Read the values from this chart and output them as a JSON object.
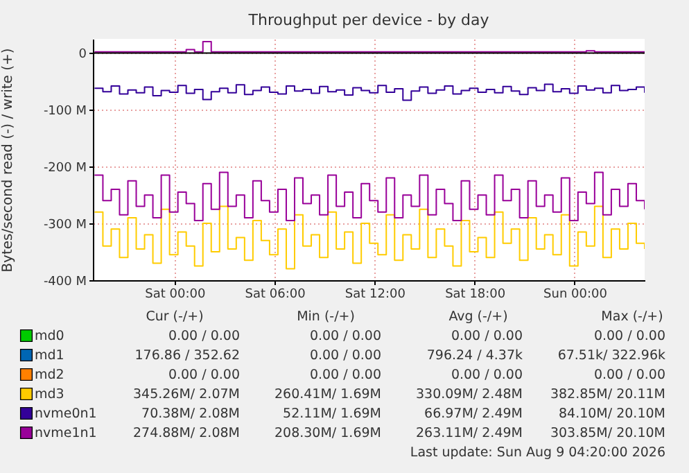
{
  "chart_data": {
    "type": "step",
    "title": "Throughput per device - by day",
    "ylabel": "Bytes/second read (-) / write (+)",
    "xlim": [
      "2026-08-07T19:06",
      "2026-08-09T04:12"
    ],
    "xticks": [
      {
        "value": "2026-08-08T00:00",
        "label": "Sat 00:00"
      },
      {
        "value": "2026-08-08T06:00",
        "label": "Sat 06:00"
      },
      {
        "value": "2026-08-08T12:00",
        "label": "Sat 12:00"
      },
      {
        "value": "2026-08-08T18:00",
        "label": "Sat 18:00"
      },
      {
        "value": "2026-08-09T00:00",
        "label": "Sun 00:00"
      }
    ],
    "ylim": [
      -400,
      25
    ],
    "yticks": [
      0,
      {
        "value": -100,
        "label": "-100 M"
      },
      {
        "value": -200,
        "label": "-200 M"
      },
      {
        "value": -300,
        "label": "-300 M"
      },
      {
        "value": -400,
        "label": "-400 M"
      }
    ],
    "grid": true,
    "legend": "bottom",
    "ref_lines": [
      {
        "axis": "y",
        "value": 0,
        "color": "#000000"
      }
    ],
    "x": [
      "2026-08-07T19:12",
      "2026-08-07T19:42",
      "2026-08-07T20:12",
      "2026-08-07T20:42",
      "2026-08-07T21:12",
      "2026-08-07T21:42",
      "2026-08-07T22:12",
      "2026-08-07T22:42",
      "2026-08-07T23:12",
      "2026-08-07T23:42",
      "2026-08-08T00:12",
      "2026-08-08T00:42",
      "2026-08-08T01:12",
      "2026-08-08T01:42",
      "2026-08-08T02:12",
      "2026-08-08T02:42",
      "2026-08-08T03:12",
      "2026-08-08T03:42",
      "2026-08-08T04:12",
      "2026-08-08T04:42",
      "2026-08-08T05:12",
      "2026-08-08T05:42",
      "2026-08-08T06:12",
      "2026-08-08T06:42",
      "2026-08-08T07:12",
      "2026-08-08T07:42",
      "2026-08-08T08:12",
      "2026-08-08T08:42",
      "2026-08-08T09:12",
      "2026-08-08T09:42",
      "2026-08-08T10:12",
      "2026-08-08T10:42",
      "2026-08-08T11:12",
      "2026-08-08T11:42",
      "2026-08-08T12:12",
      "2026-08-08T12:42",
      "2026-08-08T13:12",
      "2026-08-08T13:42",
      "2026-08-08T14:12",
      "2026-08-08T14:42",
      "2026-08-08T15:12",
      "2026-08-08T15:42",
      "2026-08-08T16:12",
      "2026-08-08T16:42",
      "2026-08-08T17:12",
      "2026-08-08T17:42",
      "2026-08-08T18:12",
      "2026-08-08T18:42",
      "2026-08-08T19:12",
      "2026-08-08T19:42",
      "2026-08-08T20:12",
      "2026-08-08T20:42",
      "2026-08-08T21:12",
      "2026-08-08T21:42",
      "2026-08-08T22:12",
      "2026-08-08T22:42",
      "2026-08-08T23:12",
      "2026-08-08T23:42",
      "2026-08-09T00:12",
      "2026-08-09T00:42",
      "2026-08-09T01:12",
      "2026-08-09T01:42",
      "2026-08-09T02:12",
      "2026-08-09T02:42",
      "2026-08-09T03:12",
      "2026-08-09T03:42",
      "2026-08-09T04:12"
    ],
    "series": [
      {
        "name": "md0",
        "color": "#00cc00",
        "values": [
          null,
          null,
          null,
          null,
          null,
          null,
          null,
          null,
          null,
          null,
          null,
          null,
          null,
          null,
          null,
          null,
          null,
          null,
          null,
          null,
          null,
          null,
          null,
          null,
          null,
          null,
          null,
          null,
          null,
          null,
          null,
          null,
          null,
          null,
          null,
          null,
          null,
          null,
          null,
          null,
          null,
          null,
          null,
          null,
          null,
          null,
          null,
          null,
          null,
          null,
          null,
          null,
          null,
          null,
          null,
          null,
          null,
          null,
          null,
          null,
          null,
          null,
          null,
          null,
          null,
          null,
          null
        ]
      },
      {
        "name": "md1",
        "color": "#0066b3",
        "values": [
          null,
          null,
          null,
          null,
          null,
          null,
          null,
          null,
          null,
          null,
          null,
          null,
          null,
          null,
          null,
          null,
          null,
          null,
          null,
          null,
          null,
          null,
          null,
          null,
          null,
          null,
          null,
          null,
          null,
          null,
          null,
          null,
          null,
          null,
          null,
          null,
          null,
          null,
          null,
          null,
          null,
          null,
          null,
          null,
          null,
          null,
          null,
          null,
          null,
          null,
          null,
          null,
          null,
          null,
          null,
          null,
          null,
          null,
          null,
          null,
          null,
          null,
          null,
          null,
          null,
          null,
          null
        ]
      },
      {
        "name": "md2",
        "color": "#ff8000",
        "values": [
          null,
          null,
          null,
          null,
          null,
          null,
          null,
          null,
          null,
          null,
          null,
          null,
          null,
          null,
          null,
          null,
          null,
          null,
          null,
          null,
          null,
          null,
          null,
          null,
          null,
          null,
          null,
          null,
          null,
          null,
          null,
          null,
          null,
          null,
          null,
          null,
          null,
          null,
          null,
          null,
          null,
          null,
          null,
          null,
          null,
          null,
          null,
          null,
          null,
          null,
          null,
          null,
          null,
          null,
          null,
          null,
          null,
          null,
          null,
          null,
          null,
          null,
          null,
          null,
          null,
          null,
          null
        ]
      },
      {
        "name": "md3",
        "color": "#ffcc00",
        "values": [
          -280,
          -340,
          -310,
          -360,
          -290,
          -345,
          -320,
          -370,
          -275,
          -355,
          -315,
          -340,
          -375,
          -300,
          -350,
          -270,
          -345,
          -325,
          -365,
          -295,
          -330,
          -355,
          -310,
          -380,
          -285,
          -340,
          -320,
          -360,
          -280,
          -345,
          -315,
          -370,
          -300,
          -335,
          -355,
          -285,
          -365,
          -320,
          -345,
          -275,
          -360,
          -310,
          -340,
          -375,
          -295,
          -350,
          -325,
          -360,
          -280,
          -335,
          -310,
          -365,
          -290,
          -345,
          -320,
          -355,
          -285,
          -375,
          -315,
          -340,
          -270,
          -360,
          -310,
          -345,
          -300,
          -335,
          -345
        ]
      },
      {
        "name": "nvme0n1",
        "color": "#330099",
        "values": [
          -62,
          -68,
          -58,
          -72,
          -65,
          -70,
          -60,
          -75,
          -66,
          -69,
          -57,
          -71,
          -64,
          -82,
          -68,
          -62,
          -70,
          -56,
          -73,
          -66,
          -60,
          -69,
          -72,
          -58,
          -67,
          -64,
          -71,
          -59,
          -68,
          -65,
          -74,
          -61,
          -66,
          -70,
          -57,
          -69,
          -63,
          -83,
          -67,
          -60,
          -71,
          -65,
          -58,
          -72,
          -66,
          -62,
          -69,
          -64,
          -70,
          -59,
          -67,
          -73,
          -61,
          -66,
          -55,
          -68,
          -63,
          -71,
          -58,
          -65,
          -62,
          -70,
          -57,
          -66,
          -64,
          -60,
          -70
        ]
      },
      {
        "name": "nvme1n1",
        "color": "#990099",
        "values": [
          -215,
          -260,
          -240,
          -285,
          -225,
          -270,
          -250,
          -290,
          -215,
          -280,
          -245,
          -265,
          -295,
          -230,
          -275,
          -210,
          -270,
          -250,
          -290,
          -225,
          -260,
          -280,
          -240,
          -295,
          -220,
          -265,
          -250,
          -285,
          -215,
          -270,
          -245,
          -290,
          -230,
          -260,
          -280,
          -220,
          -290,
          -250,
          -270,
          -215,
          -285,
          -240,
          -265,
          -295,
          -225,
          -275,
          -250,
          -285,
          -215,
          -260,
          -240,
          -290,
          -225,
          -270,
          -250,
          -280,
          -220,
          -295,
          -245,
          -265,
          -210,
          -285,
          -240,
          -270,
          -230,
          -260,
          -275
        ]
      },
      {
        "color": "#990099",
        "values": [
          2,
          2,
          2,
          2,
          2,
          2,
          2,
          2,
          2,
          2,
          2,
          6,
          2,
          20,
          2,
          2,
          2,
          2,
          2,
          2,
          2,
          2,
          2,
          2,
          2,
          2,
          2,
          2,
          2,
          2,
          2,
          2,
          2,
          2,
          2,
          2,
          2,
          2,
          2,
          2,
          2,
          2,
          2,
          2,
          2,
          2,
          2,
          2,
          2,
          2,
          2,
          2,
          2,
          2,
          2,
          2,
          2,
          2,
          2,
          4,
          2,
          2,
          2,
          2,
          2,
          2,
          2
        ]
      }
    ],
    "annotations": [
      "Cur (-/+)",
      "Min (-/+)",
      "Avg (-/+)",
      "Max (-/+)",
      "0.00 / 0.00",
      "0.00 / 0.00",
      "0.00 / 0.00",
      "0.00 / 0.00",
      "176.86 / 352.62",
      "0.00 / 0.00",
      "796.24 / 4.37k",
      "67.51k/ 322.96k",
      "0.00 / 0.00",
      "0.00 / 0.00",
      "0.00 / 0.00",
      "0.00 / 0.00",
      "345.26M/ 2.07M",
      "260.41M/ 1.69M",
      "330.09M/ 2.48M",
      "382.85M/ 20.11M",
      "70.38M/ 2.08M",
      "52.11M/ 1.69M",
      "66.97M/ 2.49M",
      "84.10M/ 20.10M",
      "274.88M/ 2.08M",
      "208.30M/ 1.69M",
      "263.11M/ 2.49M",
      "303.85M/ 20.10M",
      "Last update: Sun Aug 9 04:20:00 2026"
    ]
  }
}
